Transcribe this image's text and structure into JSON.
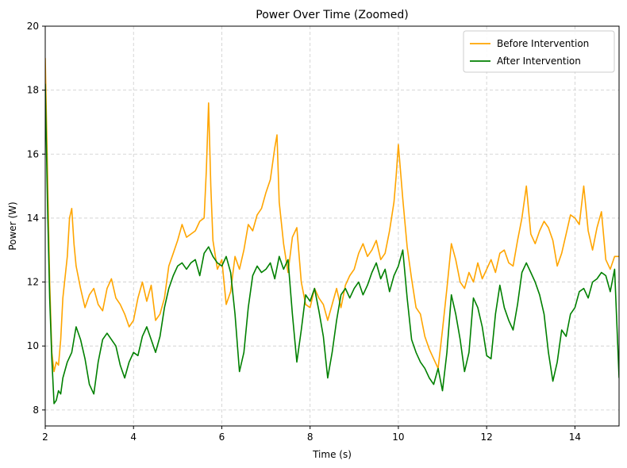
{
  "chart_data": {
    "type": "line",
    "title": "Power Over Time (Zoomed)",
    "xlabel": "Time (s)",
    "ylabel": "Power (W)",
    "xlim": [
      2,
      15
    ],
    "ylim": [
      7.5,
      20
    ],
    "xticks": [
      2,
      4,
      6,
      8,
      10,
      12,
      14
    ],
    "yticks": [
      8,
      10,
      12,
      14,
      16,
      18,
      20
    ],
    "grid": true,
    "legend_position": "top-right",
    "series": [
      {
        "name": "Before Intervention",
        "color": "#ffa500",
        "x": [
          2.0,
          2.05,
          2.1,
          2.15,
          2.2,
          2.25,
          2.3,
          2.35,
          2.4,
          2.5,
          2.55,
          2.6,
          2.65,
          2.7,
          2.8,
          2.9,
          3.0,
          3.1,
          3.2,
          3.3,
          3.4,
          3.5,
          3.6,
          3.7,
          3.8,
          3.9,
          4.0,
          4.1,
          4.2,
          4.3,
          4.4,
          4.5,
          4.6,
          4.7,
          4.8,
          4.9,
          5.0,
          5.1,
          5.2,
          5.3,
          5.4,
          5.5,
          5.6,
          5.65,
          5.7,
          5.75,
          5.8,
          5.9,
          6.0,
          6.1,
          6.2,
          6.3,
          6.4,
          6.5,
          6.6,
          6.7,
          6.8,
          6.9,
          7.0,
          7.1,
          7.2,
          7.25,
          7.3,
          7.4,
          7.5,
          7.6,
          7.7,
          7.8,
          7.9,
          8.0,
          8.1,
          8.2,
          8.3,
          8.4,
          8.5,
          8.6,
          8.7,
          8.8,
          8.9,
          9.0,
          9.1,
          9.2,
          9.3,
          9.4,
          9.5,
          9.6,
          9.7,
          9.8,
          9.9,
          9.95,
          10.0,
          10.1,
          10.2,
          10.3,
          10.4,
          10.5,
          10.6,
          10.7,
          10.8,
          10.9,
          11.0,
          11.1,
          11.2,
          11.3,
          11.4,
          11.5,
          11.6,
          11.7,
          11.8,
          11.9,
          12.0,
          12.1,
          12.2,
          12.3,
          12.4,
          12.5,
          12.6,
          12.7,
          12.8,
          12.9,
          13.0,
          13.1,
          13.2,
          13.3,
          13.4,
          13.5,
          13.6,
          13.7,
          13.8,
          13.9,
          14.0,
          14.1,
          14.2,
          14.3,
          14.4,
          14.5,
          14.6,
          14.7,
          14.8,
          14.9,
          15.0
        ],
        "y": [
          19.0,
          15.5,
          12.0,
          9.8,
          9.2,
          9.5,
          9.4,
          10.2,
          11.5,
          12.8,
          14.0,
          14.3,
          13.2,
          12.5,
          11.8,
          11.2,
          11.6,
          11.8,
          11.3,
          11.1,
          11.8,
          12.1,
          11.5,
          11.3,
          11.0,
          10.6,
          10.8,
          11.5,
          12.0,
          11.4,
          11.9,
          10.8,
          11.0,
          11.5,
          12.5,
          12.9,
          13.3,
          13.8,
          13.4,
          13.5,
          13.6,
          13.9,
          14.0,
          15.5,
          17.6,
          15.0,
          13.3,
          12.4,
          12.7,
          11.3,
          11.7,
          12.8,
          12.4,
          13.0,
          13.8,
          13.6,
          14.1,
          14.3,
          14.8,
          15.2,
          16.2,
          16.6,
          14.5,
          13.2,
          12.3,
          13.4,
          13.7,
          12.0,
          11.3,
          11.2,
          11.8,
          11.5,
          11.3,
          10.8,
          11.3,
          11.8,
          11.2,
          11.9,
          12.2,
          12.4,
          12.9,
          13.2,
          12.8,
          13.0,
          13.3,
          12.7,
          12.9,
          13.6,
          14.5,
          15.3,
          16.3,
          14.6,
          13.1,
          12.1,
          11.2,
          11.0,
          10.3,
          9.9,
          9.6,
          9.3,
          10.5,
          11.8,
          13.2,
          12.7,
          12.0,
          11.8,
          12.3,
          12.0,
          12.6,
          12.1,
          12.4,
          12.7,
          12.3,
          12.9,
          13.0,
          12.6,
          12.5,
          13.3,
          14.0,
          15.0,
          13.5,
          13.2,
          13.6,
          13.9,
          13.7,
          13.3,
          12.5,
          12.9,
          13.5,
          14.1,
          14.0,
          13.8,
          15.0,
          13.6,
          13.0,
          13.7,
          14.2,
          12.7,
          12.4,
          12.8,
          12.8
        ]
      },
      {
        "name": "After Intervention",
        "color": "#008000",
        "x": [
          2.0,
          2.05,
          2.1,
          2.15,
          2.2,
          2.25,
          2.3,
          2.35,
          2.4,
          2.5,
          2.6,
          2.7,
          2.8,
          2.9,
          3.0,
          3.1,
          3.2,
          3.3,
          3.4,
          3.5,
          3.6,
          3.7,
          3.8,
          3.9,
          4.0,
          4.1,
          4.2,
          4.3,
          4.4,
          4.5,
          4.6,
          4.7,
          4.8,
          4.9,
          5.0,
          5.1,
          5.2,
          5.3,
          5.4,
          5.5,
          5.6,
          5.7,
          5.8,
          5.9,
          6.0,
          6.1,
          6.2,
          6.3,
          6.4,
          6.5,
          6.6,
          6.7,
          6.8,
          6.9,
          7.0,
          7.1,
          7.2,
          7.3,
          7.4,
          7.5,
          7.6,
          7.7,
          7.8,
          7.9,
          8.0,
          8.1,
          8.2,
          8.3,
          8.4,
          8.5,
          8.6,
          8.7,
          8.8,
          8.9,
          9.0,
          9.1,
          9.2,
          9.3,
          9.4,
          9.5,
          9.6,
          9.7,
          9.8,
          9.9,
          10.0,
          10.1,
          10.2,
          10.3,
          10.4,
          10.5,
          10.6,
          10.7,
          10.8,
          10.9,
          11.0,
          11.1,
          11.2,
          11.3,
          11.4,
          11.5,
          11.6,
          11.7,
          11.8,
          11.9,
          12.0,
          12.1,
          12.2,
          12.3,
          12.4,
          12.5,
          12.6,
          12.7,
          12.8,
          12.9,
          13.0,
          13.1,
          13.2,
          13.3,
          13.4,
          13.5,
          13.6,
          13.7,
          13.8,
          13.9,
          14.0,
          14.1,
          14.2,
          14.3,
          14.4,
          14.5,
          14.6,
          14.7,
          14.8,
          14.9,
          15.0
        ],
        "y": [
          18.2,
          14.5,
          11.5,
          9.6,
          8.2,
          8.3,
          8.6,
          8.5,
          9.0,
          9.5,
          9.8,
          10.6,
          10.2,
          9.6,
          8.8,
          8.5,
          9.5,
          10.2,
          10.4,
          10.2,
          10.0,
          9.4,
          9.0,
          9.5,
          9.8,
          9.7,
          10.3,
          10.6,
          10.2,
          9.8,
          10.3,
          11.2,
          11.8,
          12.2,
          12.5,
          12.6,
          12.4,
          12.6,
          12.7,
          12.2,
          12.9,
          13.1,
          12.8,
          12.6,
          12.5,
          12.8,
          12.3,
          11.0,
          9.2,
          9.8,
          11.2,
          12.2,
          12.5,
          12.3,
          12.4,
          12.6,
          12.1,
          12.8,
          12.4,
          12.7,
          11.0,
          9.5,
          10.5,
          11.6,
          11.4,
          11.8,
          11.1,
          10.3,
          9.0,
          9.8,
          10.8,
          11.6,
          11.8,
          11.5,
          11.8,
          12.0,
          11.6,
          11.9,
          12.3,
          12.6,
          12.1,
          12.4,
          11.7,
          12.2,
          12.5,
          13.0,
          11.5,
          10.2,
          9.8,
          9.5,
          9.3,
          9.0,
          8.8,
          9.3,
          8.6,
          9.8,
          11.6,
          11.0,
          10.2,
          9.2,
          9.8,
          11.5,
          11.2,
          10.6,
          9.7,
          9.6,
          11.0,
          11.9,
          11.2,
          10.8,
          10.5,
          11.3,
          12.3,
          12.6,
          12.3,
          12.0,
          11.6,
          11.0,
          9.8,
          8.9,
          9.5,
          10.5,
          10.3,
          11.0,
          11.2,
          11.7,
          11.8,
          11.5,
          12.0,
          12.1,
          12.3,
          12.2,
          11.7,
          12.4,
          9.0
        ]
      }
    ]
  }
}
